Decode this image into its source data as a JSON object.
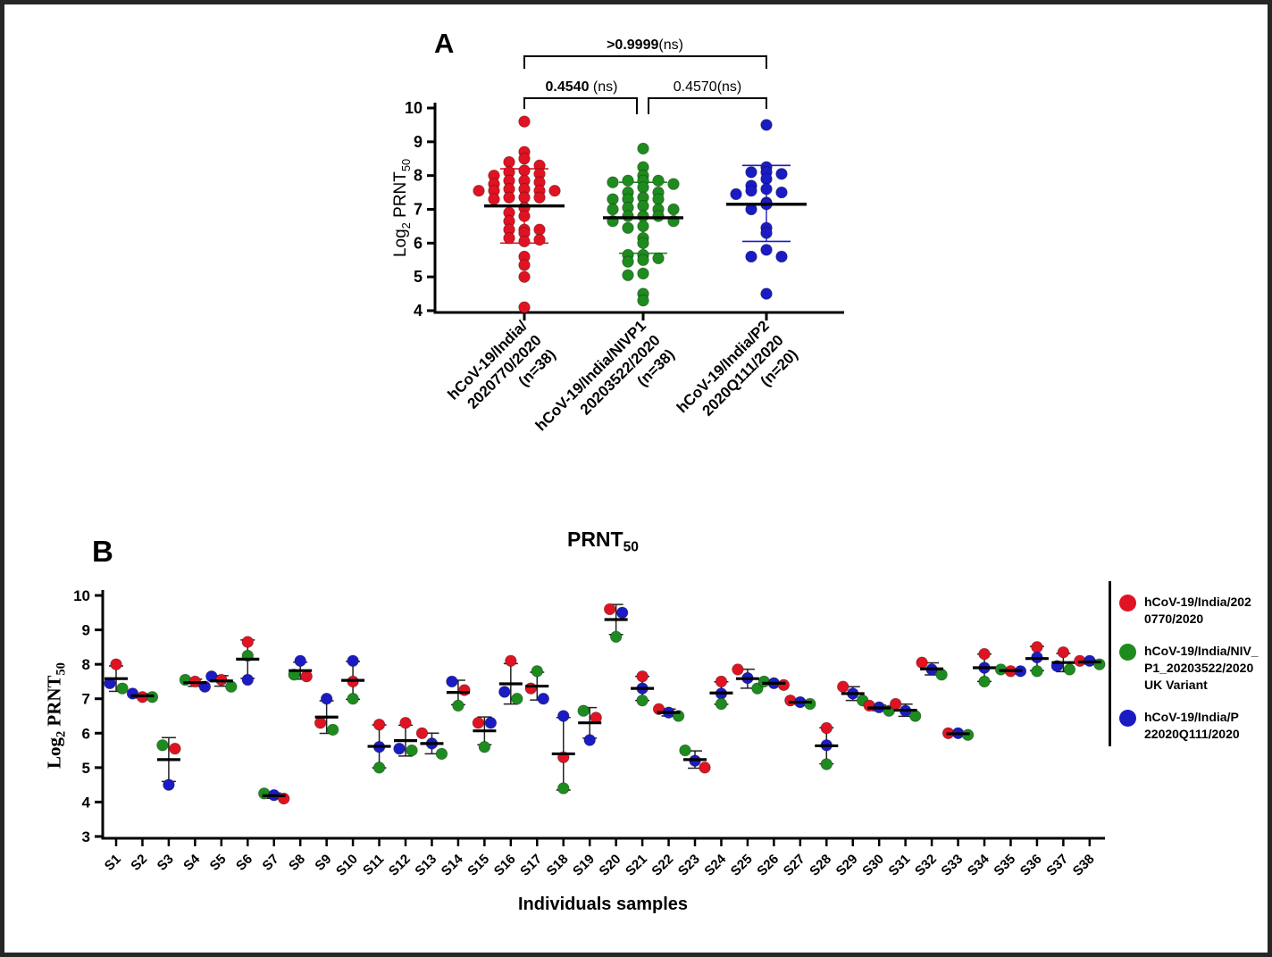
{
  "chart_data": [
    {
      "type": "scatter",
      "id": "panel_a",
      "panel_label": "A",
      "ylabel_parts": {
        "pre": "Log",
        "sub1": "2",
        "mid": " PRNT",
        "sub2": "50"
      },
      "ylim": [
        4,
        10
      ],
      "y_ticks": [
        4,
        5,
        6,
        7,
        8,
        9,
        10
      ],
      "grid": false,
      "error_style": "mean_sd",
      "groups": [
        {
          "label_lines": [
            "hCoV-19/India/",
            "2020770/2020",
            "(n=38)"
          ],
          "n": 38,
          "color": "#e01322",
          "values": [
            9.6,
            8.7,
            8.5,
            8.4,
            8.3,
            8.15,
            8.1,
            8.05,
            8.0,
            7.85,
            7.85,
            7.8,
            7.75,
            7.6,
            7.6,
            7.55,
            7.55,
            7.55,
            7.55,
            7.35,
            7.35,
            7.35,
            7.3,
            7.05,
            6.9,
            6.8,
            6.65,
            6.4,
            6.4,
            6.4,
            6.3,
            6.15,
            6.1,
            6.05,
            5.6,
            5.35,
            5.0,
            4.1
          ],
          "mean": 7.1,
          "sd_low": 6.0,
          "sd_high": 8.2
        },
        {
          "label_lines": [
            "hCoV-19/India/NIVP1",
            "20203522/2020",
            "(n=38)"
          ],
          "n": 38,
          "color": "#1e8b1e",
          "values": [
            8.8,
            8.25,
            8.0,
            7.85,
            7.85,
            7.85,
            7.8,
            7.75,
            7.65,
            7.5,
            7.5,
            7.35,
            7.3,
            7.3,
            7.3,
            7.1,
            7.05,
            7.0,
            7.0,
            7.0,
            6.8,
            6.8,
            6.8,
            6.65,
            6.65,
            6.5,
            6.45,
            6.15,
            6.0,
            5.65,
            5.65,
            5.55,
            5.5,
            5.45,
            5.1,
            5.05,
            4.5,
            4.3
          ],
          "mean": 6.75,
          "sd_low": 5.7,
          "sd_high": 7.8
        },
        {
          "label_lines": [
            "hCoV-19/India/P2",
            "2020Q111/2020",
            "(n=20)"
          ],
          "n": 20,
          "color": "#1b1bc4",
          "values": [
            9.5,
            8.25,
            8.1,
            8.1,
            8.05,
            7.9,
            7.7,
            7.6,
            7.55,
            7.5,
            7.45,
            7.2,
            7.15,
            7.0,
            6.45,
            6.3,
            5.8,
            5.6,
            5.6,
            4.5
          ],
          "mean": 7.15,
          "sd_low": 6.05,
          "sd_high": 8.3
        }
      ],
      "comparisons": [
        {
          "from": 0,
          "to": 2,
          "p_bold": ">0.9999",
          "p_rest": "(ns)"
        },
        {
          "from": 0,
          "to": 1,
          "p_bold": "0.4540",
          "p_rest": " (ns)"
        },
        {
          "from": 1,
          "to": 2,
          "p_bold": "",
          "p_rest": "0.4570(ns)"
        }
      ]
    },
    {
      "type": "scatter",
      "id": "panel_b",
      "panel_label": "B",
      "title_parts": {
        "main": "PRNT",
        "sub": "50"
      },
      "xlabel": "Individuals samples",
      "ylabel_parts": {
        "pre": "Log",
        "sub1": "2",
        "mid": " PRNT",
        "sub2": "50"
      },
      "ylim": [
        3,
        10
      ],
      "y_ticks": [
        3,
        4,
        5,
        6,
        7,
        8,
        9,
        10
      ],
      "grid": false,
      "error_style": "mean_sd",
      "categories": [
        "S1",
        "S2",
        "S3",
        "S4",
        "S5",
        "S6",
        "S7",
        "S8",
        "S9",
        "S10",
        "S11",
        "S12",
        "S13",
        "S14",
        "S15",
        "S16",
        "S17",
        "S18",
        "S19",
        "S20",
        "S21",
        "S22",
        "S23",
        "S24",
        "S25",
        "S26",
        "S27",
        "S28",
        "S29",
        "S30",
        "S31",
        "S32",
        "S33",
        "S34",
        "S35",
        "S36",
        "S37",
        "S38"
      ],
      "series": [
        {
          "name": "hCoV-19/India/2020770/2020",
          "color": "#e01322",
          "values": [
            8.0,
            7.05,
            5.55,
            7.5,
            7.55,
            8.65,
            4.1,
            7.65,
            6.3,
            7.5,
            6.25,
            6.3,
            6.0,
            7.25,
            6.3,
            8.1,
            7.3,
            5.3,
            6.45,
            9.6,
            7.65,
            6.7,
            5.0,
            7.5,
            7.85,
            7.4,
            6.95,
            6.15,
            7.35,
            6.8,
            6.85,
            8.05,
            6.0,
            8.3,
            7.8,
            8.5,
            8.35,
            8.1
          ]
        },
        {
          "name": "hCoV-19/India/NIV_P1_20203522/2020 UK Variant",
          "color": "#1e8b1e",
          "values": [
            7.3,
            7.05,
            5.65,
            7.55,
            7.35,
            8.25,
            4.25,
            7.7,
            6.1,
            7.0,
            5.0,
            5.5,
            5.4,
            6.8,
            5.6,
            7.0,
            7.8,
            4.4,
            6.65,
            8.8,
            6.95,
            6.5,
            5.5,
            6.85,
            7.3,
            7.5,
            6.85,
            5.1,
            6.95,
            6.65,
            6.5,
            7.7,
            5.95,
            7.5,
            7.85,
            7.8,
            7.85,
            8.0
          ]
        },
        {
          "name": "hCoV-19/India/P22020Q111/2020",
          "color": "#1b1bc4",
          "values": [
            7.45,
            7.15,
            4.5,
            7.35,
            7.65,
            7.55,
            4.2,
            8.1,
            7.0,
            8.1,
            5.6,
            5.55,
            5.7,
            7.5,
            6.3,
            7.2,
            7.0,
            6.5,
            5.8,
            9.5,
            7.3,
            6.6,
            5.2,
            7.15,
            7.6,
            7.45,
            6.9,
            5.65,
            7.15,
            6.75,
            6.65,
            7.85,
            6.0,
            7.9,
            7.8,
            8.2,
            7.95,
            8.1
          ]
        }
      ],
      "legend": [
        {
          "color": "#e01322",
          "lines": [
            "hCoV-19/India/202",
            "0770/2020"
          ]
        },
        {
          "color": "#1e8b1e",
          "lines": [
            "hCoV-19/India/NIV_",
            "P1_20203522/2020",
            "UK Variant"
          ]
        },
        {
          "color": "#1b1bc4",
          "lines": [
            "hCoV-19/India/P",
            "22020Q111/2020"
          ]
        }
      ]
    }
  ]
}
